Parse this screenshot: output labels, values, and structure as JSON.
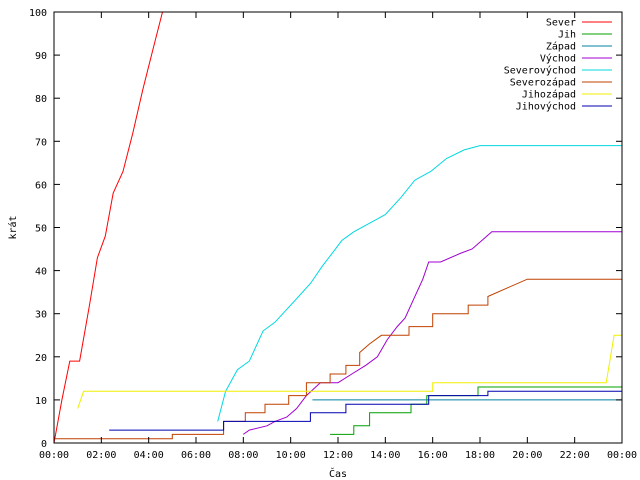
{
  "chart_data": {
    "type": "line",
    "xlabel": "Čas",
    "ylabel": "krát",
    "xlim": [
      0,
      1440
    ],
    "ylim": [
      0,
      100
    ],
    "x_unit": "minutes since 00:00",
    "x_ticks": [
      {
        "x": 0,
        "label": "00:00"
      },
      {
        "x": 120,
        "label": "02:00"
      },
      {
        "x": 240,
        "label": "04:00"
      },
      {
        "x": 360,
        "label": "06:00"
      },
      {
        "x": 480,
        "label": "08:00"
      },
      {
        "x": 600,
        "label": "10:00"
      },
      {
        "x": 720,
        "label": "12:00"
      },
      {
        "x": 840,
        "label": "14:00"
      },
      {
        "x": 960,
        "label": "16:00"
      },
      {
        "x": 1080,
        "label": "18:00"
      },
      {
        "x": 1200,
        "label": "20:00"
      },
      {
        "x": 1320,
        "label": "22:00"
      },
      {
        "x": 1440,
        "label": "00:00"
      }
    ],
    "y_ticks": [
      0,
      10,
      20,
      30,
      40,
      50,
      60,
      70,
      80,
      90,
      100
    ],
    "grid": false,
    "legend_position": "top-right",
    "series": [
      {
        "name": "Sever",
        "color": "#ff0000",
        "points": [
          [
            0,
            0
          ],
          [
            20,
            10
          ],
          [
            40,
            19
          ],
          [
            65,
            19
          ],
          [
            90,
            32
          ],
          [
            110,
            43
          ],
          [
            130,
            48
          ],
          [
            150,
            58
          ],
          [
            175,
            63
          ],
          [
            200,
            72
          ],
          [
            225,
            82
          ],
          [
            250,
            91
          ],
          [
            275,
            100
          ]
        ]
      },
      {
        "name": "Jih",
        "color": "#00a000",
        "points": [
          [
            0,
            null
          ],
          [
            700,
            null
          ],
          [
            700,
            2
          ],
          [
            760,
            2
          ],
          [
            760,
            4
          ],
          [
            800,
            4
          ],
          [
            800,
            7
          ],
          [
            905,
            7
          ],
          [
            905,
            9
          ],
          [
            945,
            9
          ],
          [
            945,
            11
          ],
          [
            1075,
            11
          ],
          [
            1075,
            13
          ],
          [
            1440,
            13
          ]
        ]
      },
      {
        "name": "Západ",
        "color": "#0080a0",
        "points": [
          [
            0,
            null
          ],
          [
            655,
            null
          ],
          [
            655,
            10
          ],
          [
            1440,
            10
          ]
        ]
      },
      {
        "name": "Východ",
        "color": "#a000d0",
        "points": [
          [
            0,
            null
          ],
          [
            480,
            null
          ],
          [
            480,
            2
          ],
          [
            495,
            3
          ],
          [
            540,
            4
          ],
          [
            560,
            5
          ],
          [
            590,
            6
          ],
          [
            615,
            8
          ],
          [
            640,
            11
          ],
          [
            675,
            14
          ],
          [
            720,
            14
          ],
          [
            755,
            16
          ],
          [
            790,
            18
          ],
          [
            820,
            20
          ],
          [
            845,
            24
          ],
          [
            870,
            27
          ],
          [
            890,
            29
          ],
          [
            910,
            33
          ],
          [
            935,
            38
          ],
          [
            950,
            42
          ],
          [
            980,
            42
          ],
          [
            1030,
            44
          ],
          [
            1060,
            45
          ],
          [
            1085,
            47
          ],
          [
            1110,
            49
          ],
          [
            1440,
            49
          ]
        ]
      },
      {
        "name": "Severovýchod",
        "color": "#00d8e0",
        "points": [
          [
            0,
            null
          ],
          [
            405,
            null
          ],
          [
            415,
            5
          ],
          [
            435,
            12
          ],
          [
            465,
            17
          ],
          [
            495,
            19
          ],
          [
            530,
            26
          ],
          [
            560,
            28
          ],
          [
            590,
            31
          ],
          [
            620,
            34
          ],
          [
            650,
            37
          ],
          [
            680,
            41
          ],
          [
            705,
            44
          ],
          [
            730,
            47
          ],
          [
            760,
            49
          ],
          [
            800,
            51
          ],
          [
            840,
            53
          ],
          [
            880,
            57
          ],
          [
            915,
            61
          ],
          [
            955,
            63
          ],
          [
            995,
            66
          ],
          [
            1040,
            68
          ],
          [
            1080,
            69
          ],
          [
            1440,
            69
          ]
        ]
      },
      {
        "name": "Severozápad",
        "color": "#c04000",
        "points": [
          [
            0,
            1
          ],
          [
            300,
            1
          ],
          [
            300,
            2
          ],
          [
            430,
            2
          ],
          [
            430,
            5
          ],
          [
            485,
            5
          ],
          [
            485,
            7
          ],
          [
            535,
            7
          ],
          [
            535,
            9
          ],
          [
            595,
            9
          ],
          [
            595,
            11
          ],
          [
            640,
            11
          ],
          [
            640,
            14
          ],
          [
            700,
            14
          ],
          [
            700,
            16
          ],
          [
            740,
            16
          ],
          [
            740,
            18
          ],
          [
            775,
            18
          ],
          [
            775,
            21
          ],
          [
            800,
            23
          ],
          [
            830,
            25
          ],
          [
            900,
            25
          ],
          [
            900,
            27
          ],
          [
            960,
            27
          ],
          [
            960,
            30
          ],
          [
            1050,
            30
          ],
          [
            1050,
            32
          ],
          [
            1100,
            32
          ],
          [
            1100,
            34
          ],
          [
            1150,
            36
          ],
          [
            1200,
            38
          ],
          [
            1440,
            38
          ]
        ]
      },
      {
        "name": "Jihozápad",
        "color": "#f0f000",
        "points": [
          [
            0,
            null
          ],
          [
            60,
            null
          ],
          [
            60,
            8
          ],
          [
            75,
            12
          ],
          [
            960,
            12
          ],
          [
            960,
            14
          ],
          [
            1400,
            14
          ],
          [
            1420,
            25
          ],
          [
            1440,
            25
          ]
        ]
      },
      {
        "name": "Jihovýchod",
        "color": "#0000b0",
        "points": [
          [
            0,
            null
          ],
          [
            140,
            null
          ],
          [
            140,
            3
          ],
          [
            430,
            3
          ],
          [
            430,
            5
          ],
          [
            650,
            5
          ],
          [
            650,
            7
          ],
          [
            740,
            7
          ],
          [
            740,
            9
          ],
          [
            950,
            9
          ],
          [
            950,
            11
          ],
          [
            1100,
            11
          ],
          [
            1100,
            12
          ],
          [
            1440,
            12
          ]
        ]
      }
    ]
  }
}
